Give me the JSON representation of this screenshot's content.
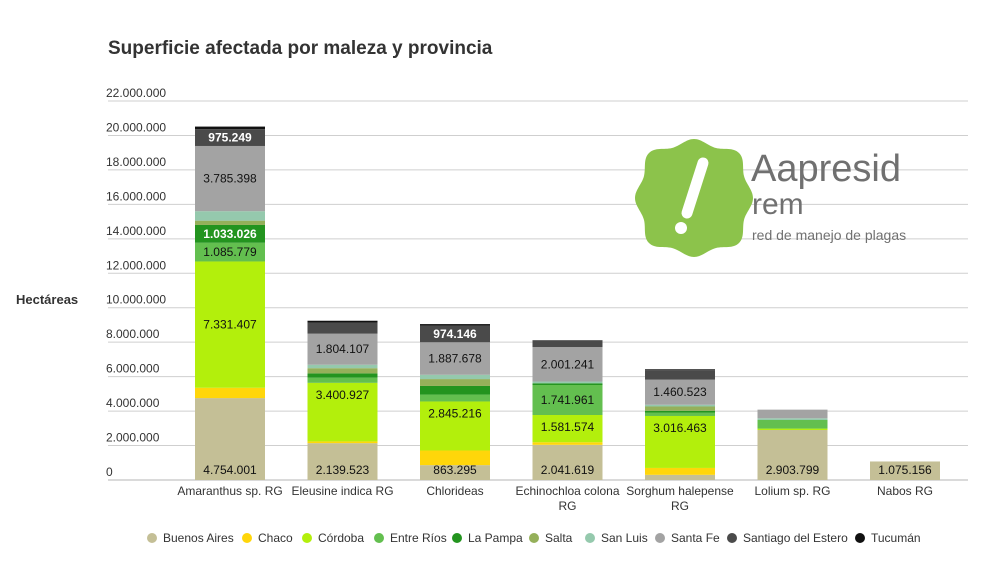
{
  "chart_data": {
    "type": "bar",
    "stacked": true,
    "title": "Superficie afectada por maleza y provincia",
    "ylabel": "Hectáreas",
    "xlabel": "",
    "ylim": [
      0,
      22000000
    ],
    "yticks": [
      0,
      2000000,
      4000000,
      6000000,
      8000000,
      10000000,
      12000000,
      14000000,
      16000000,
      18000000,
      20000000,
      22000000
    ],
    "ytick_labels": [
      "0",
      "2.000.000",
      "4.000.000",
      "6.000.000",
      "8.000.000",
      "10.000.000",
      "12.000.000",
      "14.000.000",
      "16.000.000",
      "18.000.000",
      "20.000.000",
      "22.000.000"
    ],
    "grid": true,
    "legend_position": "bottom",
    "categories": [
      [
        "Amaranthus sp. RG"
      ],
      [
        "Eleusine indica RG"
      ],
      [
        "Chlorideas"
      ],
      [
        "Echinochloa colona",
        "RG"
      ],
      [
        "Sorghum halepense",
        "RG"
      ],
      [
        "Lolium sp. RG"
      ],
      [
        "Nabos RG"
      ]
    ],
    "series": [
      {
        "name": "Buenos Aires",
        "color": "#c4bf96",
        "values": [
          4754001,
          2139523,
          863295,
          2041619,
          300000,
          2903799,
          1075156
        ],
        "labels": [
          "4.754.001",
          "2.139.523",
          "863.295",
          "2.041.619",
          "",
          "2.903.799",
          "1.075.156"
        ]
      },
      {
        "name": "Chaco",
        "color": "#ffd60a",
        "values": [
          600000,
          100000,
          850000,
          150000,
          400000,
          0,
          0
        ],
        "labels": [
          "",
          "",
          "",
          "",
          "",
          "",
          ""
        ]
      },
      {
        "name": "Córdoba",
        "color": "#b3ef0c",
        "values": [
          7331407,
          3400927,
          2845216,
          1581574,
          3016463,
          80000,
          0
        ],
        "labels": [
          "7.331.407",
          "3.400.927",
          "2.845.216",
          "1.581.574",
          "3.016.463",
          "",
          ""
        ]
      },
      {
        "name": "Entre Ríos",
        "color": "#63bf4f",
        "values": [
          1085779,
          300000,
          400000,
          1741961,
          200000,
          500000,
          0
        ],
        "labels": [
          "1.085.779",
          "",
          "",
          "1.741.961",
          "",
          "",
          ""
        ]
      },
      {
        "name": "La Pampa",
        "color": "#23941f",
        "values": [
          1033026,
          250000,
          500000,
          100000,
          100000,
          0,
          0
        ],
        "labels": [
          "1.033.026",
          "",
          "",
          "",
          "",
          "",
          ""
        ]
      },
      {
        "name": "Salta",
        "color": "#95b05a",
        "values": [
          250000,
          300000,
          400000,
          0,
          250000,
          0,
          0
        ],
        "labels": [
          "",
          "",
          "",
          "",
          "",
          "",
          ""
        ]
      },
      {
        "name": "San Luis",
        "color": "#95c9ad",
        "values": [
          550000,
          200000,
          250000,
          100000,
          100000,
          100000,
          0
        ],
        "labels": [
          "",
          "",
          "",
          "",
          "",
          "",
          ""
        ]
      },
      {
        "name": "Santa Fe",
        "color": "#a3a3a3",
        "values": [
          3785398,
          1804107,
          1887678,
          2001241,
          1460523,
          500000,
          0
        ],
        "labels": [
          "3.785.398",
          "1.804.107",
          "1.887.678",
          "2.001.241",
          "1.460.523",
          "",
          ""
        ]
      },
      {
        "name": "Santiago del Estero",
        "color": "#4a4a4a",
        "values": [
          975249,
          650000,
          974146,
          400000,
          550000,
          0,
          0
        ],
        "labels": [
          "975.249",
          "",
          "974.146",
          "",
          "",
          "",
          ""
        ]
      },
      {
        "name": "Tucumán",
        "color": "#111111",
        "values": [
          150000,
          100000,
          80000,
          0,
          50000,
          0,
          0
        ],
        "labels": [
          "",
          "",
          "",
          "",
          "",
          "",
          ""
        ]
      }
    ]
  },
  "logo": {
    "brand": "Aapresid",
    "sub": "rem",
    "tagline": "red de manejo de plagas",
    "colors": {
      "badge": "#8cc34b",
      "text": "#707070"
    }
  }
}
